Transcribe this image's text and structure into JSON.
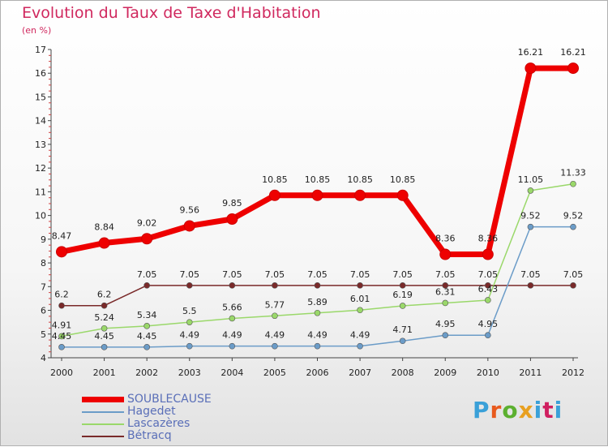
{
  "title": "Evolution du Taux de Taxe d'Habitation",
  "subtitle": "(en %)",
  "logo": {
    "text": "Proxiti",
    "colors": [
      "#3aa0d8",
      "#e85a1e",
      "#5cb030",
      "#e8a020",
      "#3aa0d8",
      "#d02060",
      "#3aa0d8"
    ]
  },
  "chart_data": {
    "type": "line",
    "x": [
      "2000",
      "2001",
      "2002",
      "2003",
      "2004",
      "2005",
      "2006",
      "2007",
      "2008",
      "2009",
      "2010",
      "2011",
      "2012"
    ],
    "ylim": [
      4,
      17
    ],
    "yticks": [
      4,
      5,
      6,
      7,
      8,
      9,
      10,
      11,
      12,
      13,
      14,
      15,
      16,
      17
    ],
    "grid": false,
    "legend_position": "bottom-left",
    "series": [
      {
        "name": "SOUBLECAUSE",
        "color": "#ee0000",
        "values": [
          8.47,
          8.84,
          9.02,
          9.56,
          9.85,
          10.85,
          10.85,
          10.85,
          10.85,
          8.36,
          8.36,
          16.21,
          16.21
        ],
        "labels": [
          "8.47",
          "8.84",
          "9.02",
          "9.56",
          "9.85",
          "10.85",
          "10.85",
          "10.85",
          "10.85",
          "8.36",
          "8.36",
          "16.21",
          "16.21"
        ]
      },
      {
        "name": "Hagedet",
        "color": "#6b9cc8",
        "values": [
          4.45,
          4.45,
          4.45,
          4.49,
          4.49,
          4.49,
          4.49,
          4.49,
          4.71,
          4.95,
          4.95,
          9.52,
          9.52
        ],
        "labels": [
          "4.45",
          "4.45",
          "4.45",
          "4.49",
          "4.49",
          "4.49",
          "4.49",
          "4.49",
          "4.71",
          "4.95",
          "4.95",
          "9.52",
          "9.52"
        ]
      },
      {
        "name": "Lascazères",
        "color": "#9ad86a",
        "values": [
          4.91,
          5.24,
          5.34,
          5.5,
          5.66,
          5.77,
          5.89,
          6.01,
          6.19,
          6.31,
          6.43,
          11.05,
          11.33
        ],
        "labels": [
          "4.91",
          "5.24",
          "5.34",
          "5.5",
          "5.66",
          "5.77",
          "5.89",
          "6.01",
          "6.19",
          "6.31",
          "6.43",
          "11.05",
          "11.33"
        ]
      },
      {
        "name": "Bétracq",
        "color": "#7a2a2a",
        "values": [
          6.2,
          6.2,
          7.05,
          7.05,
          7.05,
          7.05,
          7.05,
          7.05,
          7.05,
          7.05,
          7.05,
          7.05,
          7.05
        ],
        "labels": [
          "6.2",
          "6.2",
          "7.05",
          "7.05",
          "7.05",
          "7.05",
          "7.05",
          "7.05",
          "7.05",
          "7.05",
          "7.05",
          "7.05",
          "7.05"
        ]
      }
    ]
  }
}
